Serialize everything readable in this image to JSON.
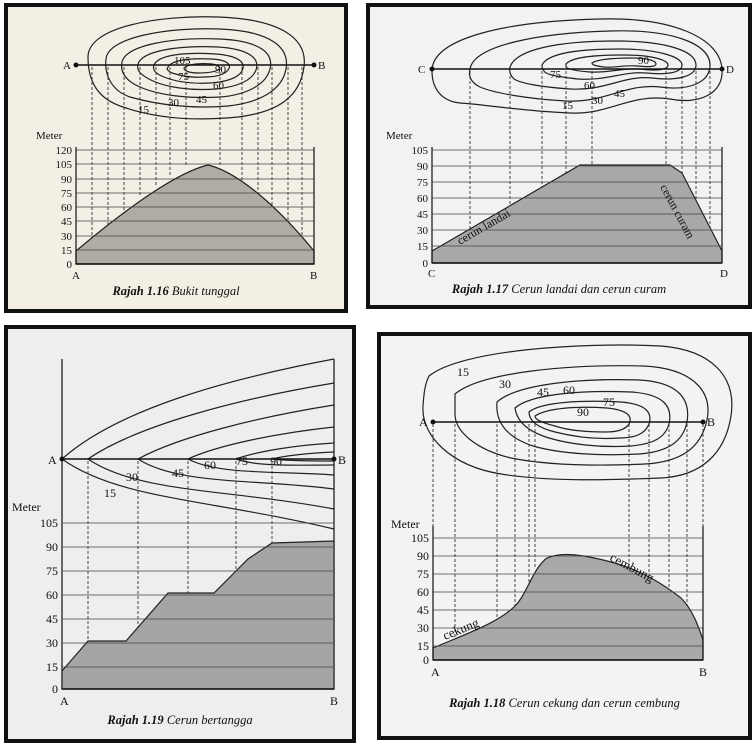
{
  "figures": [
    {
      "id": "1.16",
      "caption_num": "Rajah 1.16",
      "caption_text": "Bukit tunggal",
      "axis_title": "Meter",
      "y_ticks": [
        "120",
        "105",
        "90",
        "75",
        "60",
        "45",
        "30",
        "15",
        "0"
      ],
      "section_start": "A",
      "section_end": "B",
      "contour_labels": [
        "15",
        "30",
        "45",
        "60",
        "75",
        "90",
        "105"
      ]
    },
    {
      "id": "1.17",
      "caption_num": "Rajah 1.17",
      "caption_text": "Cerun landai dan cerun curam",
      "axis_title": "Meter",
      "y_ticks": [
        "105",
        "90",
        "75",
        "60",
        "45",
        "30",
        "15",
        "0"
      ],
      "section_start": "C",
      "section_end": "D",
      "contour_labels": [
        "15",
        "30",
        "45",
        "60",
        "75",
        "90"
      ],
      "slope_labels": [
        "cerun landai",
        "cerun curam"
      ]
    },
    {
      "id": "1.19",
      "caption_num": "Rajah 1.19",
      "caption_text": "Cerun bertangga",
      "axis_title": "Meter",
      "y_ticks": [
        "105",
        "90",
        "75",
        "60",
        "45",
        "30",
        "15",
        "0"
      ],
      "section_start": "A",
      "section_end": "B",
      "contour_labels": [
        "15",
        "30",
        "45",
        "60",
        "75",
        "90"
      ]
    },
    {
      "id": "1.18",
      "caption_num": "Rajah 1.18",
      "caption_text": "Cerun cekung dan cerun cembung",
      "axis_title": "Meter",
      "y_ticks": [
        "105",
        "90",
        "75",
        "60",
        "45",
        "30",
        "15",
        "0"
      ],
      "section_start": "A",
      "section_end": "B",
      "contour_labels": [
        "15",
        "30",
        "45",
        "60",
        "75",
        "90"
      ],
      "slope_labels": [
        "cekung",
        "cembung"
      ]
    }
  ]
}
